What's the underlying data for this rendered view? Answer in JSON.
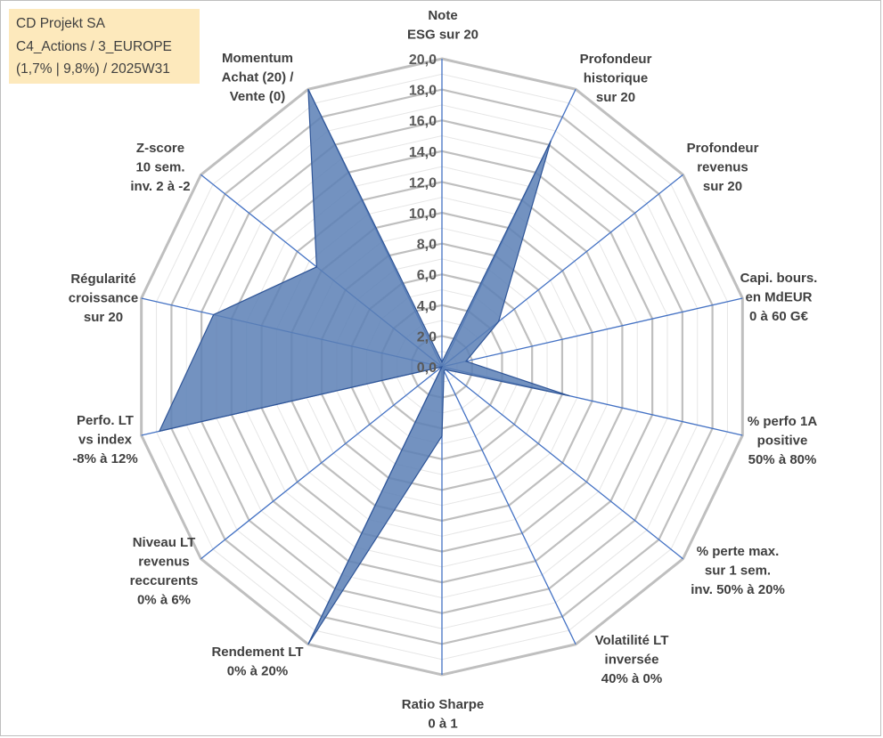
{
  "title_box": {
    "line1": "CD Projekt SA",
    "line2": "C4_Actions / 3_EUROPE",
    "line3": "(1,7% | 9,8%) / 2025W31"
  },
  "chart_data": {
    "type": "radar",
    "rmin": 0,
    "rmax": 20,
    "tick_step": 2,
    "tick_labels": [
      "0,0",
      "2,0",
      "4,0",
      "6,0",
      "8,0",
      "10,0",
      "12,0",
      "14,0",
      "16,0",
      "18,0",
      "20,0"
    ],
    "grid": true,
    "categories": [
      [
        "Note",
        "ESG sur 20"
      ],
      [
        "Profondeur",
        "historique",
        "sur 20"
      ],
      [
        "Profondeur",
        "revenus",
        "sur 20"
      ],
      [
        "Capi. bours.",
        "en MdEUR",
        "0 à 60 G€"
      ],
      [
        "% perfo 1A",
        "positive",
        "50% à 80%"
      ],
      [
        "% perte max.",
        "sur 1 sem.",
        "inv. 50% à 20%"
      ],
      [
        "Volatilité LT",
        "inversée",
        "40% à 0%"
      ],
      [
        "Ratio Sharpe",
        "0 à 1"
      ],
      [
        "Rendement LT",
        "0% à 20%"
      ],
      [
        "Niveau LT",
        "revenus",
        "reccurents",
        "0% à 6%"
      ],
      [
        "Perfo. LT",
        "vs index",
        "-8% à 12%"
      ],
      [
        "Régularité",
        "croissance",
        "sur 20"
      ],
      [
        "Z-score",
        "10 sem.",
        "inv. 2 à -2"
      ],
      [
        "Momentum",
        "Achat (20) /",
        "Vente (0)"
      ]
    ],
    "series": [
      {
        "values": [
          0.3,
          16.3,
          4.7,
          1.6,
          8.5,
          0.3,
          0.3,
          4.5,
          20.0,
          0.0,
          18.8,
          15.2,
          10.4,
          20.0
        ]
      }
    ],
    "colors": {
      "fill": "#5b7fb5",
      "stroke": "#2f5597",
      "axis": "#4472c4",
      "grid_major": "#bfbfbf",
      "grid_minor": "#e6e6e6"
    }
  }
}
